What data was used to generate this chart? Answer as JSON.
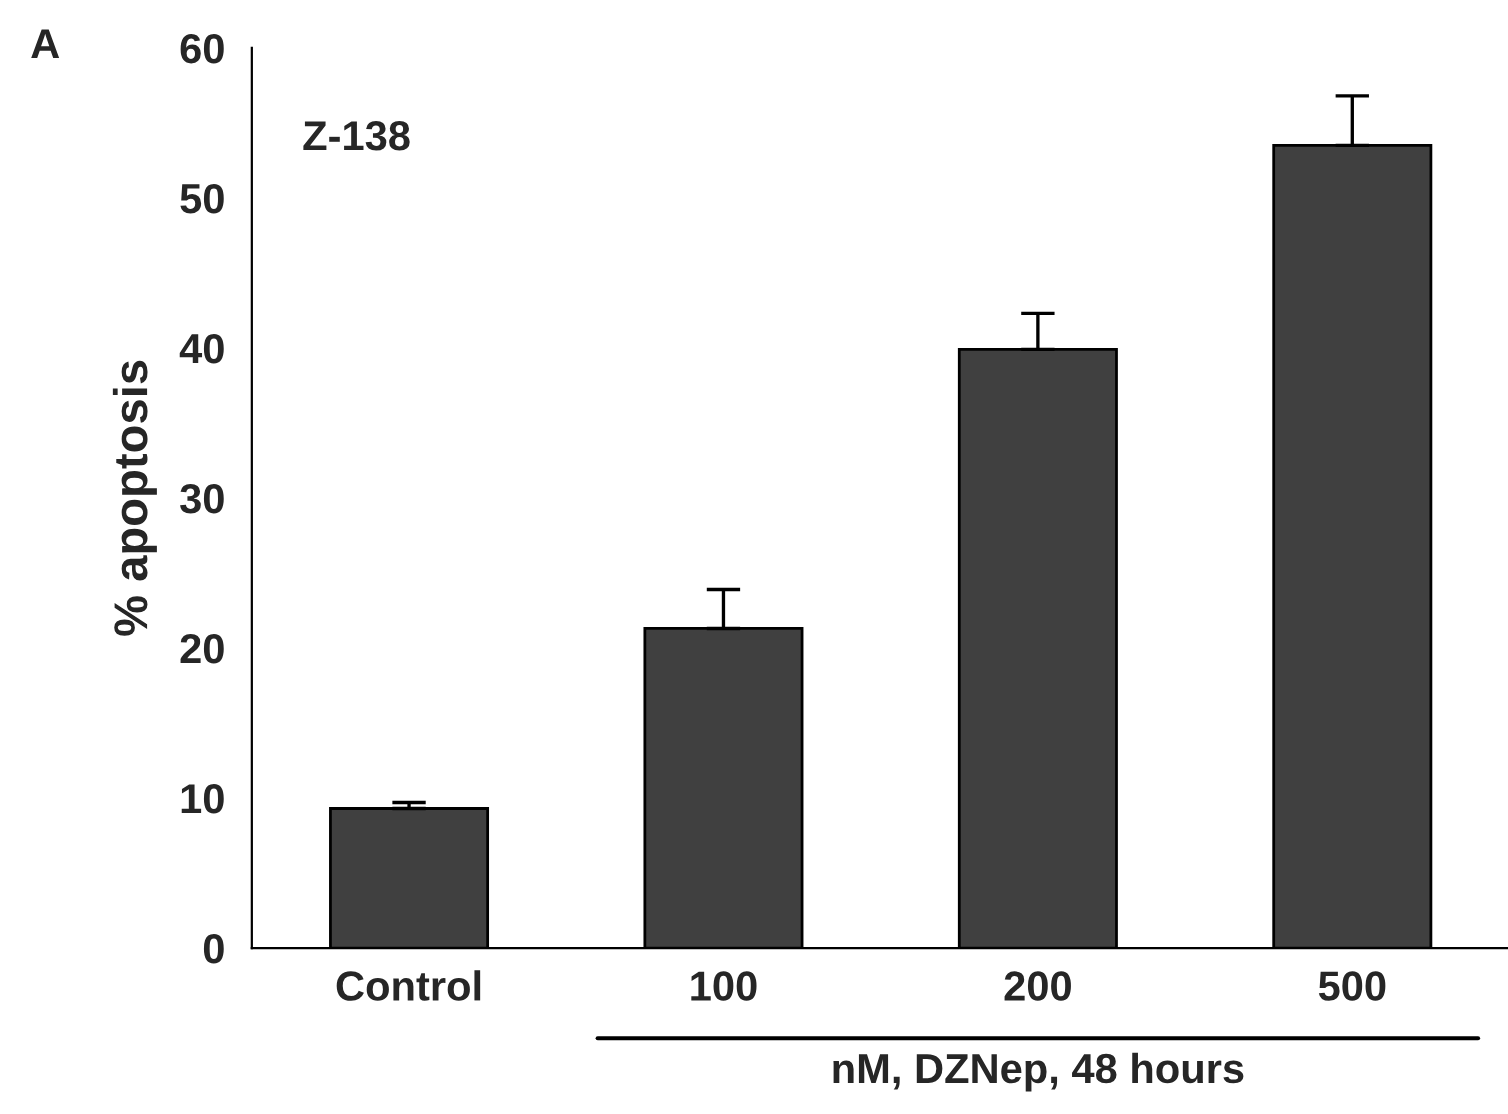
{
  "chart_data": {
    "type": "bar",
    "ylabel": "% apoptosis",
    "xlabel": "nM, DZNep, 48 hours",
    "categories": [
      "Control",
      "100",
      "200",
      "500"
    ],
    "values": [
      9.3,
      21.3,
      39.9,
      53.5
    ],
    "errors": [
      [
        9.3,
        9.7
      ],
      [
        21.3,
        23.9
      ],
      [
        39.9,
        42.3
      ],
      [
        53.5,
        56.8
      ]
    ],
    "color": "#404040",
    "ylim": [
      0,
      60
    ],
    "yticks": [
      0,
      10,
      20,
      30,
      40,
      50,
      60
    ],
    "grid": false,
    "annotations": [
      "A",
      "Z-138"
    ]
  }
}
